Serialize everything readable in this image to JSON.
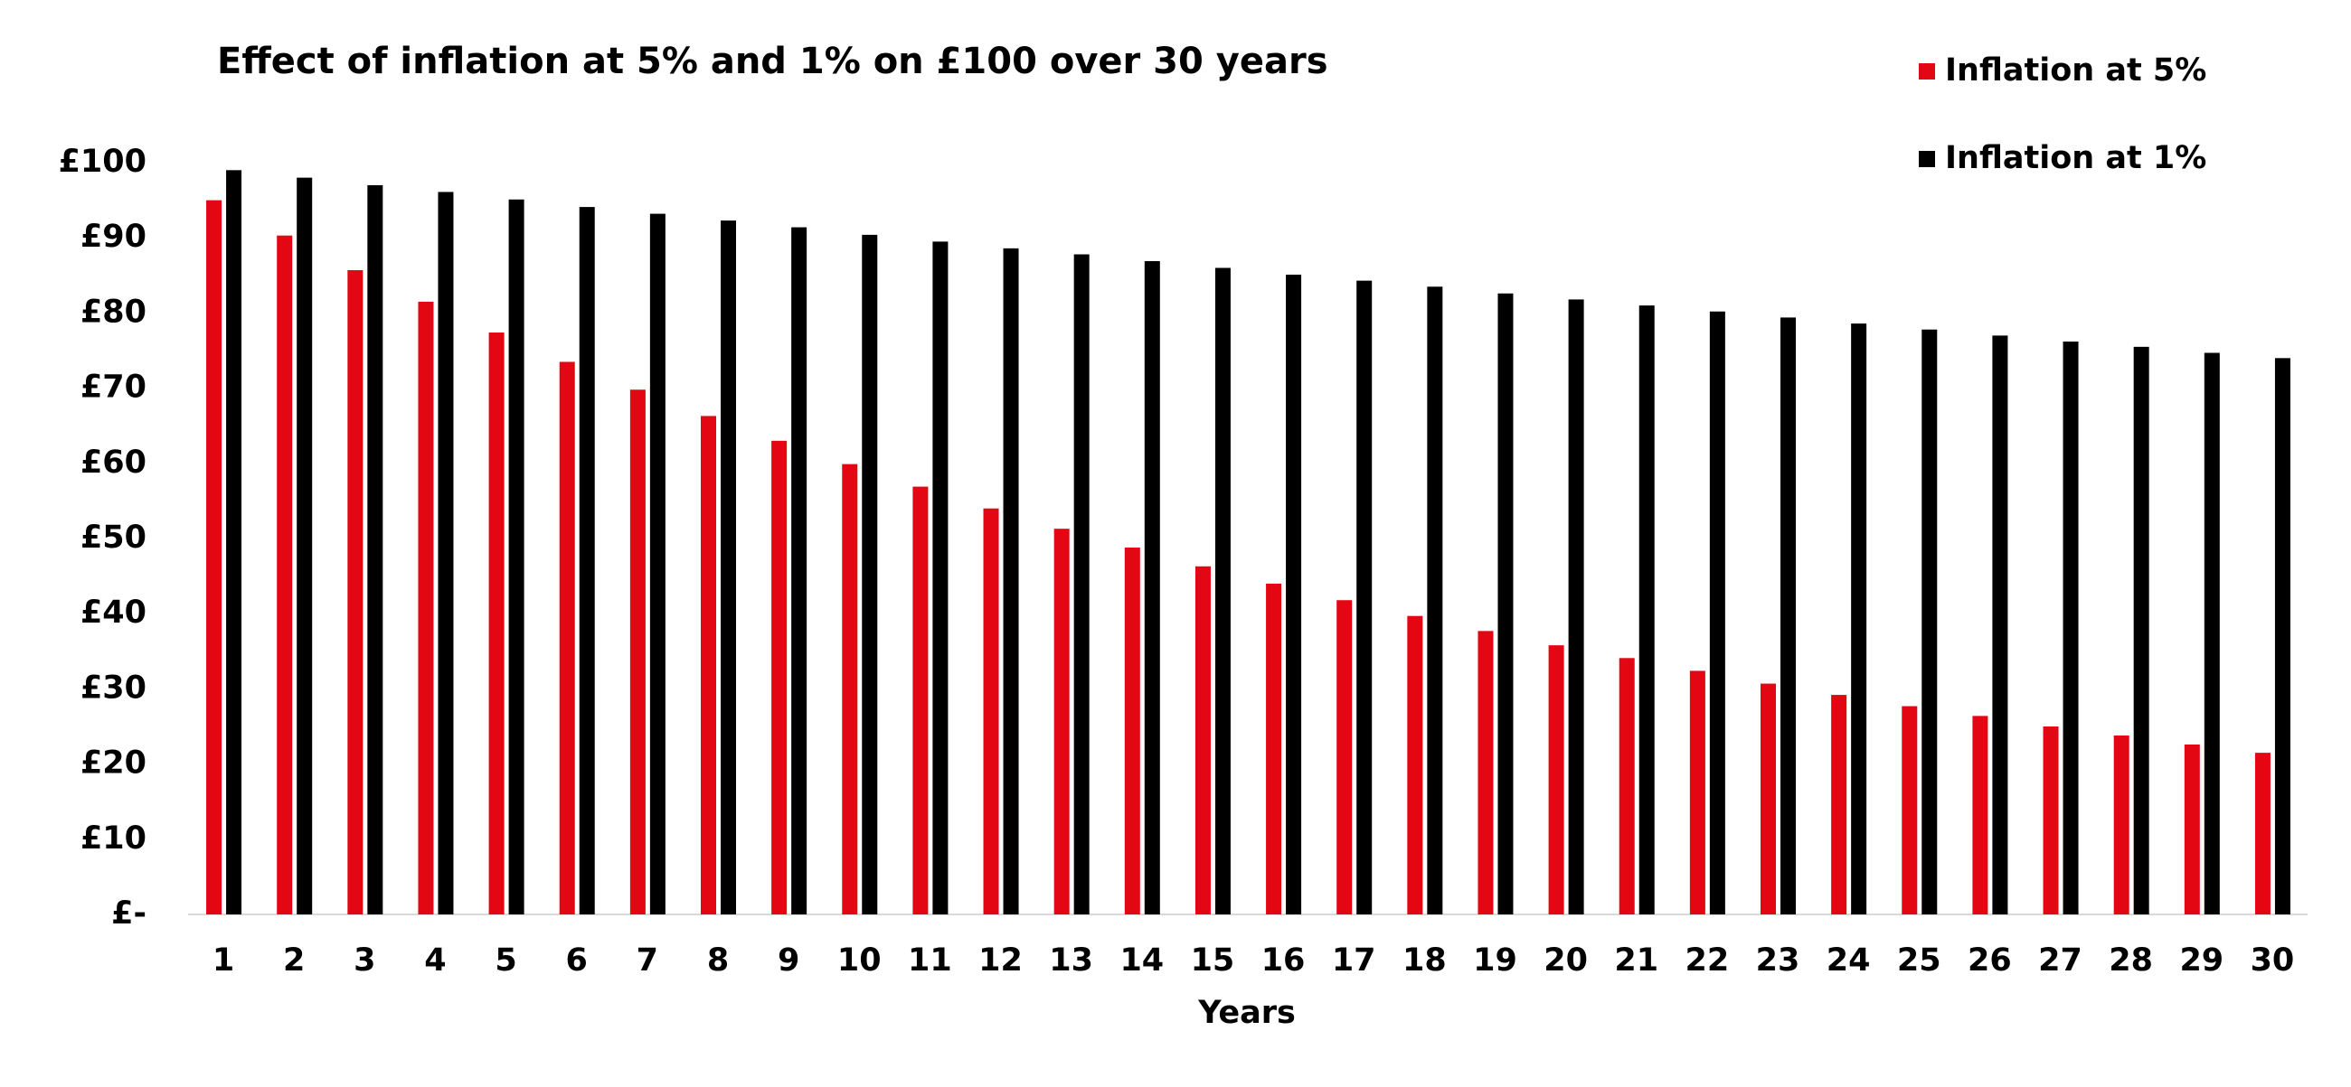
{
  "chart_data": {
    "type": "bar",
    "title": "Effect of inflation at 5% and 1% on £100 over 30 years",
    "x_label": "Years",
    "categories": [
      "1",
      "2",
      "3",
      "4",
      "5",
      "6",
      "7",
      "8",
      "9",
      "10",
      "11",
      "12",
      "13",
      "14",
      "15",
      "16",
      "17",
      "18",
      "19",
      "20",
      "21",
      "22",
      "23",
      "24",
      "25",
      "26",
      "27",
      "28",
      "29",
      "30"
    ],
    "series": [
      {
        "name": "Inflation at 5%",
        "color": "#e30613",
        "values": [
          95.0,
          90.3,
          85.7,
          81.5,
          77.4,
          73.5,
          69.8,
          66.3,
          63.0,
          59.9,
          56.9,
          54.0,
          51.3,
          48.8,
          46.3,
          44.0,
          41.8,
          39.7,
          37.7,
          35.8,
          34.1,
          32.4,
          30.7,
          29.2,
          27.7,
          26.4,
          25.0,
          23.8,
          22.6,
          21.5
        ]
      },
      {
        "name": "Inflation at 1%",
        "color": "#000000",
        "values": [
          99.0,
          98.0,
          97.0,
          96.1,
          95.1,
          94.1,
          93.2,
          92.3,
          91.4,
          90.4,
          89.5,
          88.6,
          87.8,
          86.9,
          86.0,
          85.1,
          84.3,
          83.5,
          82.6,
          81.8,
          81.0,
          80.2,
          79.4,
          78.6,
          77.8,
          77.0,
          76.2,
          75.5,
          74.7,
          74.0
        ]
      }
    ],
    "ylim": [
      0,
      100
    ],
    "yticks": [
      {
        "value": 0,
        "label": "£-"
      },
      {
        "value": 10,
        "label": "£10"
      },
      {
        "value": 20,
        "label": "£20"
      },
      {
        "value": 30,
        "label": "£30"
      },
      {
        "value": 40,
        "label": "£40"
      },
      {
        "value": 50,
        "label": "£50"
      },
      {
        "value": 60,
        "label": "£60"
      },
      {
        "value": 70,
        "label": "£70"
      },
      {
        "value": 80,
        "label": "£80"
      },
      {
        "value": 90,
        "label": "£90"
      },
      {
        "value": 100,
        "label": "£100"
      }
    ],
    "grid": false,
    "legend": "top-right"
  }
}
